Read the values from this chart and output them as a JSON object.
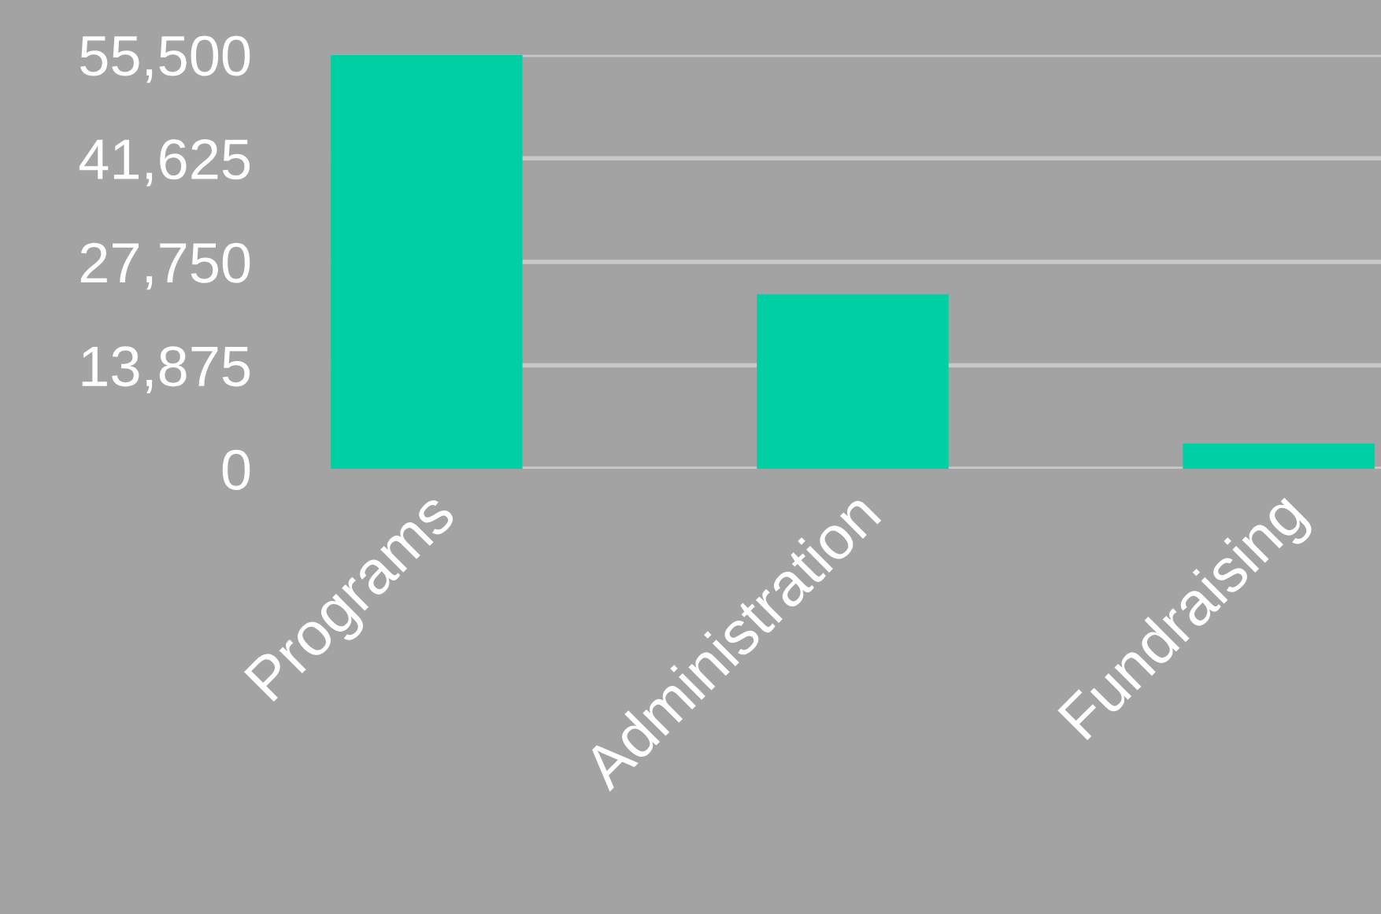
{
  "chart_data": {
    "type": "bar",
    "categories": [
      "Programs",
      "Administration",
      "Fundraising"
    ],
    "values": [
      55500,
      23400,
      3400
    ],
    "color": "#00cfa4",
    "ylim": [
      0,
      55500
    ],
    "yticks": [
      {
        "value": 0,
        "label": "0"
      },
      {
        "value": 13875,
        "label": "13,875"
      },
      {
        "value": 27750,
        "label": "27,750"
      },
      {
        "value": 41625,
        "label": "41,625"
      },
      {
        "value": 55500,
        "label": "55,500"
      }
    ],
    "grid": "y",
    "legend": false
  }
}
